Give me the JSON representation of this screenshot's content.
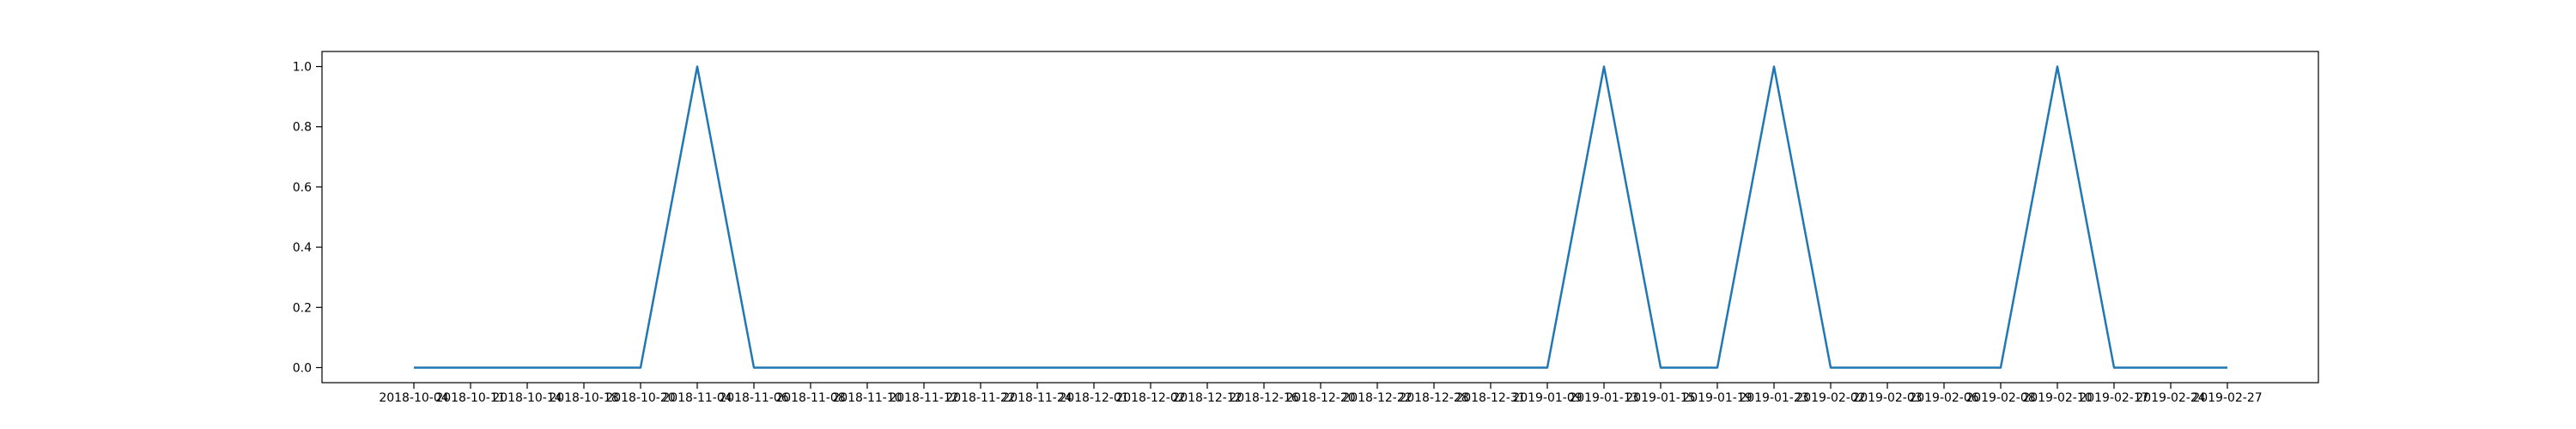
{
  "chart_data": {
    "type": "line",
    "title": "",
    "xlabel": "",
    "ylabel": "",
    "ylim": [
      -0.05,
      1.05
    ],
    "grid": false,
    "legend": "none",
    "line_color": "#1f77b4",
    "x": [
      "2018-10-04",
      "2018-10-11",
      "2018-10-14",
      "2018-10-18",
      "2018-10-20",
      "2018-11-04",
      "2018-11-06",
      "2018-11-08",
      "2018-11-10",
      "2018-11-12",
      "2018-11-22",
      "2018-11-24",
      "2018-12-01",
      "2018-12-02",
      "2018-12-12",
      "2018-12-16",
      "2018-12-20",
      "2018-12-22",
      "2018-12-28",
      "2018-12-31",
      "2019-01-09",
      "2019-01-13",
      "2019-01-15",
      "2019-01-19",
      "2019-01-23",
      "2019-02-02",
      "2019-02-03",
      "2019-02-06",
      "2019-02-08",
      "2019-02-10",
      "2019-02-17",
      "2019-02-24",
      "2019-02-27"
    ],
    "values": [
      0,
      0,
      0,
      0,
      0,
      1,
      0,
      0,
      0,
      0,
      0,
      0,
      0,
      0,
      0,
      0,
      0,
      0,
      0,
      0,
      0,
      1,
      0,
      0,
      1,
      0,
      0,
      0,
      0,
      1,
      0,
      0,
      0
    ],
    "yticks": [
      0.0,
      0.2,
      0.4,
      0.6,
      0.8,
      1.0
    ],
    "ytick_labels": [
      "0.0",
      "0.2",
      "0.4",
      "0.6",
      "0.8",
      "1.0"
    ]
  }
}
